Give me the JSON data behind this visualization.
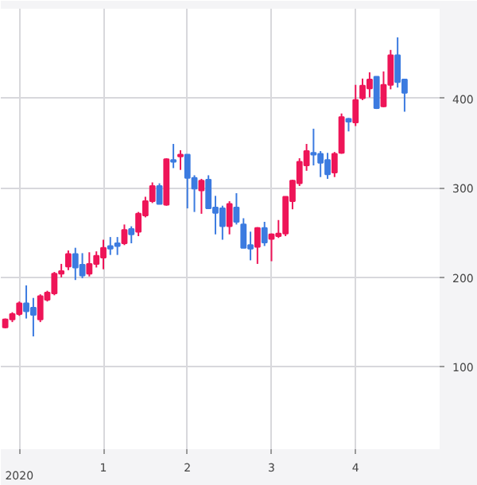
{
  "chart_data": {
    "type": "candlestick",
    "x": [
      -0.167,
      -0.083,
      0,
      0.083,
      0.167,
      0.25,
      0.333,
      0.417,
      0.5,
      0.583,
      0.667,
      0.75,
      0.833,
      0.917,
      1,
      1.083,
      1.167,
      1.25,
      1.333,
      1.417,
      1.5,
      1.583,
      1.667,
      1.75,
      1.833,
      1.917,
      2,
      2.083,
      2.167,
      2.25,
      2.333,
      2.417,
      2.5,
      2.583,
      2.667,
      2.75,
      2.833,
      2.917,
      3,
      3.083,
      3.167,
      3.25,
      3.333,
      3.417,
      3.5,
      3.583,
      3.667,
      3.75,
      3.833,
      3.917,
      4,
      4.083,
      4.167,
      4.25,
      4.333,
      4.417,
      4.5,
      4.583
    ],
    "ohlc": [
      [
        144,
        154,
        143,
        153
      ],
      [
        153,
        161,
        150,
        159
      ],
      [
        159,
        173,
        157,
        171
      ],
      [
        171,
        191,
        154,
        162
      ],
      [
        166,
        177,
        134,
        158
      ],
      [
        153,
        181,
        150,
        179
      ],
      [
        175,
        185,
        173,
        183
      ],
      [
        182,
        206,
        180,
        204
      ],
      [
        204,
        215,
        200,
        207
      ],
      [
        212,
        230,
        208,
        226
      ],
      [
        226,
        233,
        197,
        211
      ],
      [
        214,
        227,
        199,
        202
      ],
      [
        204,
        228,
        201,
        215
      ],
      [
        215,
        229,
        211,
        224
      ],
      [
        222,
        242,
        209,
        233
      ],
      [
        235,
        245,
        225,
        232
      ],
      [
        238,
        245,
        225,
        235
      ],
      [
        238,
        259,
        236,
        253
      ],
      [
        254,
        257,
        238,
        248
      ],
      [
        251,
        273,
        246,
        271
      ],
      [
        269,
        290,
        267,
        285
      ],
      [
        285,
        306,
        283,
        302
      ],
      [
        302,
        305,
        282,
        282
      ],
      [
        281,
        333,
        280,
        332
      ],
      [
        331,
        349,
        322,
        329
      ],
      [
        335,
        342,
        320,
        337
      ],
      [
        337,
        337,
        277,
        311
      ],
      [
        311,
        314,
        273,
        299
      ],
      [
        297,
        310,
        271,
        308
      ],
      [
        309,
        314,
        277,
        277
      ],
      [
        278,
        291,
        248,
        272
      ],
      [
        277,
        280,
        242,
        257
      ],
      [
        257,
        285,
        248,
        282
      ],
      [
        278,
        294,
        259,
        262
      ],
      [
        259,
        266,
        233,
        233
      ],
      [
        236,
        251,
        219,
        232
      ],
      [
        234,
        256,
        215,
        255
      ],
      [
        255,
        262,
        235,
        239
      ],
      [
        243,
        249,
        218,
        248
      ],
      [
        246,
        264,
        244,
        249
      ],
      [
        249,
        290,
        246,
        290
      ],
      [
        285,
        309,
        276,
        308
      ],
      [
        305,
        333,
        302,
        329
      ],
      [
        325,
        349,
        319,
        341
      ],
      [
        339,
        366,
        325,
        337
      ],
      [
        338,
        341,
        312,
        328
      ],
      [
        331,
        339,
        310,
        315
      ],
      [
        317,
        340,
        312,
        338
      ],
      [
        339,
        383,
        338,
        379
      ],
      [
        377,
        378,
        363,
        374
      ],
      [
        373,
        415,
        369,
        398
      ],
      [
        400,
        422,
        398,
        414
      ],
      [
        411,
        429,
        401,
        421
      ],
      [
        424,
        424,
        388,
        389
      ],
      [
        391,
        430,
        390,
        415
      ],
      [
        415,
        454,
        410,
        448
      ],
      [
        448,
        468,
        412,
        418
      ],
      [
        421,
        421,
        385,
        406
      ]
    ],
    "colors": [
      "#ee1558",
      "#ee1558",
      "#ee1558",
      "#3c7be0",
      "#3c7be0",
      "#ee1558",
      "#ee1558",
      "#ee1558",
      "#ee1558",
      "#ee1558",
      "#3c7be0",
      "#3c7be0",
      "#ee1558",
      "#ee1558",
      "#ee1558",
      "#3c7be0",
      "#3c7be0",
      "#ee1558",
      "#3c7be0",
      "#ee1558",
      "#ee1558",
      "#ee1558",
      "#3c7be0",
      "#ee1558",
      "#3c7be0",
      "#ee1558",
      "#3c7be0",
      "#3c7be0",
      "#ee1558",
      "#3c7be0",
      "#3c7be0",
      "#3c7be0",
      "#ee1558",
      "#3c7be0",
      "#3c7be0",
      "#3c7be0",
      "#ee1558",
      "#3c7be0",
      "#ee1558",
      "#ee1558",
      "#ee1558",
      "#ee1558",
      "#ee1558",
      "#ee1558",
      "#3c7be0",
      "#3c7be0",
      "#3c7be0",
      "#ee1558",
      "#ee1558",
      "#3c7be0",
      "#ee1558",
      "#ee1558",
      "#ee1558",
      "#3c7be0",
      "#ee1558",
      "#ee1558",
      "#3c7be0",
      "#3c7be0"
    ],
    "xlim": [
      -0.22,
      5.0
    ],
    "ylim": [
      8,
      500
    ],
    "xticks": [
      {
        "value": 0,
        "label": null
      },
      1,
      2,
      3,
      4
    ],
    "annotations": [
      "2020"
    ],
    "yticks": [
      100,
      200,
      300,
      400
    ],
    "grid": true
  }
}
